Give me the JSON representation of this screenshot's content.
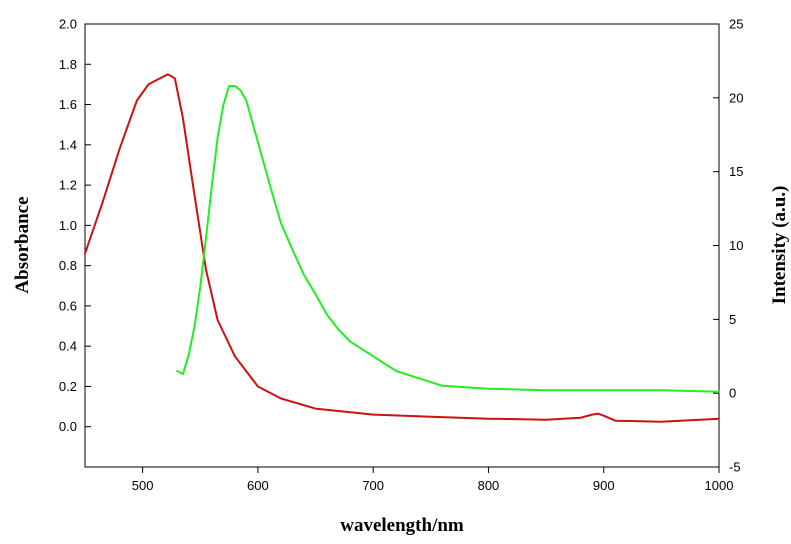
{
  "chart_data": {
    "type": "line",
    "xlabel": "wavelength/nm",
    "ylabel": "Absorbance",
    "y2label": "Intensity (a.u.)",
    "xlim": [
      450,
      1000
    ],
    "ylim": [
      -0.2,
      2.0
    ],
    "y2lim": [
      -5,
      25
    ],
    "x_ticks": [
      500,
      600,
      700,
      800,
      900,
      1000
    ],
    "y_ticks": [
      "0.0",
      "0.2",
      "0.4",
      "0.6",
      "0.8",
      "1.0",
      "1.2",
      "1.4",
      "1.6",
      "1.8",
      "2.0"
    ],
    "y2_ticks": [
      "-5",
      "0",
      "5",
      "10",
      "15",
      "20",
      "25"
    ],
    "grid": false,
    "legend": "none",
    "series": [
      {
        "axis": "left",
        "color": "#cc1111",
        "x": [
          450,
          465,
          480,
          495,
          505,
          515,
          522,
          528,
          535,
          545,
          555,
          565,
          580,
          600,
          620,
          650,
          700,
          750,
          800,
          850,
          880,
          890,
          895,
          900,
          910,
          950,
          1000
        ],
        "y": [
          0.86,
          1.11,
          1.38,
          1.62,
          1.7,
          1.73,
          1.75,
          1.73,
          1.53,
          1.15,
          0.78,
          0.53,
          0.35,
          0.2,
          0.14,
          0.09,
          0.06,
          0.05,
          0.04,
          0.035,
          0.045,
          0.06,
          0.065,
          0.055,
          0.03,
          0.025,
          0.04
        ]
      },
      {
        "axis": "right",
        "color": "#22ee22",
        "x": [
          530,
          535,
          540,
          545,
          550,
          555,
          560,
          565,
          570,
          575,
          580,
          585,
          590,
          600,
          610,
          620,
          630,
          640,
          650,
          660,
          670,
          680,
          700,
          720,
          740,
          760,
          800,
          850,
          900,
          950,
          1000
        ],
        "y": [
          1.5,
          1.3,
          2.6,
          4.5,
          7.2,
          10.5,
          14.0,
          17.3,
          19.5,
          20.8,
          20.8,
          20.5,
          19.8,
          17.0,
          14.2,
          11.5,
          9.7,
          8.0,
          6.7,
          5.3,
          4.3,
          3.5,
          2.5,
          1.5,
          1.0,
          0.5,
          0.3,
          0.2,
          0.2,
          0.2,
          0.1
        ]
      }
    ]
  }
}
